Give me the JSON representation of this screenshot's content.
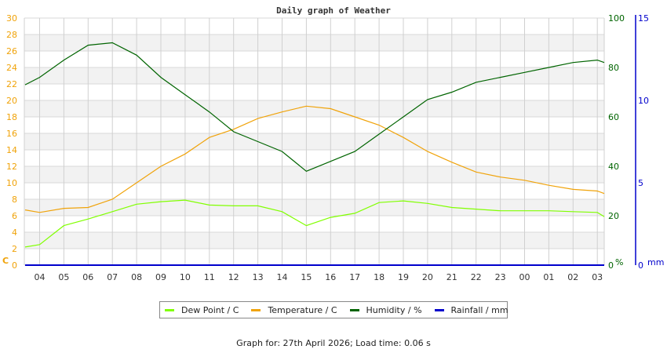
{
  "chart_data": {
    "type": "line",
    "title": "Daily graph of Weather",
    "xlabel": "",
    "ylabel": "C",
    "y2label": "%",
    "y3label": "mm",
    "ylim": [
      0,
      30
    ],
    "y2lim": [
      0,
      100
    ],
    "y3lim": [
      0,
      15
    ],
    "grid": true,
    "legend_position": "bottom",
    "y_ticks": [
      "0",
      "2",
      "4",
      "6",
      "8",
      "10",
      "12",
      "14",
      "16",
      "18",
      "20",
      "22",
      "24",
      "26",
      "28",
      "30"
    ],
    "y2_ticks": [
      "0",
      "20",
      "40",
      "60",
      "80",
      "100"
    ],
    "y3_ticks": [
      "0",
      "5",
      "10",
      "15"
    ],
    "categories": [
      "04",
      "05",
      "06",
      "07",
      "08",
      "09",
      "10",
      "11",
      "12",
      "13",
      "14",
      "15",
      "16",
      "17",
      "18",
      "19",
      "20",
      "21",
      "22",
      "23",
      "00",
      "01",
      "02",
      "03"
    ],
    "x_hours": [
      -0.6,
      0,
      1,
      2,
      3,
      4,
      5,
      6,
      7,
      8,
      9,
      10,
      11,
      12,
      13,
      14,
      15,
      16,
      17,
      18,
      19,
      20,
      21,
      22,
      23,
      23.3
    ],
    "series": [
      {
        "name": "Dew Point / C",
        "color": "#80ff00",
        "axis": "left",
        "values": [
          2.2,
          2.5,
          4.8,
          5.6,
          6.5,
          7.4,
          7.7,
          7.9,
          7.3,
          7.2,
          7.2,
          6.5,
          4.8,
          5.8,
          6.3,
          7.6,
          7.8,
          7.5,
          7.0,
          6.8,
          6.6,
          6.6,
          6.6,
          6.5,
          6.4,
          5.9
        ]
      },
      {
        "name": "Temperature / C",
        "color": "#f0a30a",
        "axis": "left",
        "values": [
          6.7,
          6.4,
          6.9,
          7.0,
          8.0,
          10.0,
          12.0,
          13.5,
          15.5,
          16.5,
          17.8,
          18.6,
          19.3,
          19.0,
          18.0,
          17.0,
          15.5,
          13.8,
          12.5,
          11.3,
          10.7,
          10.3,
          9.7,
          9.2,
          9.0,
          8.7
        ]
      },
      {
        "name": "Humidity / %",
        "color": "#006400",
        "axis": "right",
        "values": [
          73,
          76,
          83,
          89,
          90,
          85,
          76,
          69,
          62,
          54,
          50,
          46,
          38,
          42,
          46,
          53,
          60,
          67,
          70,
          74,
          76,
          78,
          80,
          82,
          83,
          82
        ]
      },
      {
        "name": "Rainfall / mm",
        "color": "#0000cc",
        "axis": "right2",
        "values": [
          0,
          0,
          0,
          0,
          0,
          0,
          0,
          0,
          0,
          0,
          0,
          0,
          0,
          0,
          0,
          0,
          0,
          0,
          0,
          0,
          0,
          0,
          0,
          0,
          0,
          0
        ]
      }
    ]
  },
  "legend": [
    {
      "label": "Dew Point / C",
      "color": "#80ff00"
    },
    {
      "label": "Temperature / C",
      "color": "#f0a30a"
    },
    {
      "label": "Humidity / %",
      "color": "#006400"
    },
    {
      "label": "Rainfall / mm",
      "color": "#0000cc"
    }
  ],
  "footer": "Graph for: 27th April 2026; Load time: 0.06 s"
}
